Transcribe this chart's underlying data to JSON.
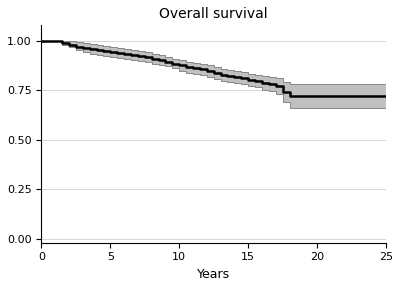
{
  "title": "Overall survival",
  "xlabel": "Years",
  "ylabel": "",
  "xlim": [
    0,
    25
  ],
  "ylim": [
    -0.02,
    1.08
  ],
  "yticks": [
    0.0,
    0.25,
    0.5,
    0.75,
    1.0
  ],
  "xticks": [
    0,
    5,
    10,
    15,
    20,
    25
  ],
  "background_color": "#ffffff",
  "ci_color": "#c0c0c0",
  "line_color": "#000000",
  "km_times": [
    0,
    1.0,
    1.5,
    2.0,
    2.5,
    3.0,
    3.5,
    4.0,
    4.5,
    5.0,
    5.5,
    6.0,
    6.5,
    7.0,
    7.5,
    8.0,
    8.5,
    9.0,
    9.5,
    10.0,
    10.5,
    11.0,
    11.5,
    12.0,
    12.5,
    13.0,
    13.5,
    14.0,
    14.5,
    15.0,
    15.5,
    16.0,
    16.5,
    17.0,
    17.5,
    18.0,
    25.0
  ],
  "km_surv": [
    1.0,
    1.0,
    0.99,
    0.98,
    0.97,
    0.965,
    0.96,
    0.955,
    0.95,
    0.945,
    0.94,
    0.935,
    0.93,
    0.925,
    0.92,
    0.91,
    0.905,
    0.895,
    0.885,
    0.875,
    0.865,
    0.86,
    0.855,
    0.845,
    0.835,
    0.825,
    0.82,
    0.815,
    0.81,
    0.8,
    0.795,
    0.785,
    0.78,
    0.77,
    0.74,
    0.72,
    0.72
  ],
  "km_upper": [
    1.0,
    1.0,
    1.0,
    1.0,
    0.995,
    0.99,
    0.985,
    0.98,
    0.975,
    0.97,
    0.965,
    0.96,
    0.955,
    0.95,
    0.945,
    0.935,
    0.93,
    0.92,
    0.91,
    0.905,
    0.895,
    0.89,
    0.885,
    0.875,
    0.865,
    0.855,
    0.85,
    0.845,
    0.84,
    0.83,
    0.825,
    0.82,
    0.815,
    0.81,
    0.79,
    0.78,
    0.78
  ],
  "km_lower": [
    1.0,
    1.0,
    0.98,
    0.97,
    0.955,
    0.945,
    0.935,
    0.93,
    0.925,
    0.92,
    0.915,
    0.91,
    0.905,
    0.9,
    0.895,
    0.885,
    0.88,
    0.87,
    0.86,
    0.845,
    0.835,
    0.83,
    0.825,
    0.815,
    0.805,
    0.795,
    0.79,
    0.785,
    0.78,
    0.77,
    0.765,
    0.75,
    0.745,
    0.73,
    0.69,
    0.66,
    0.66
  ]
}
